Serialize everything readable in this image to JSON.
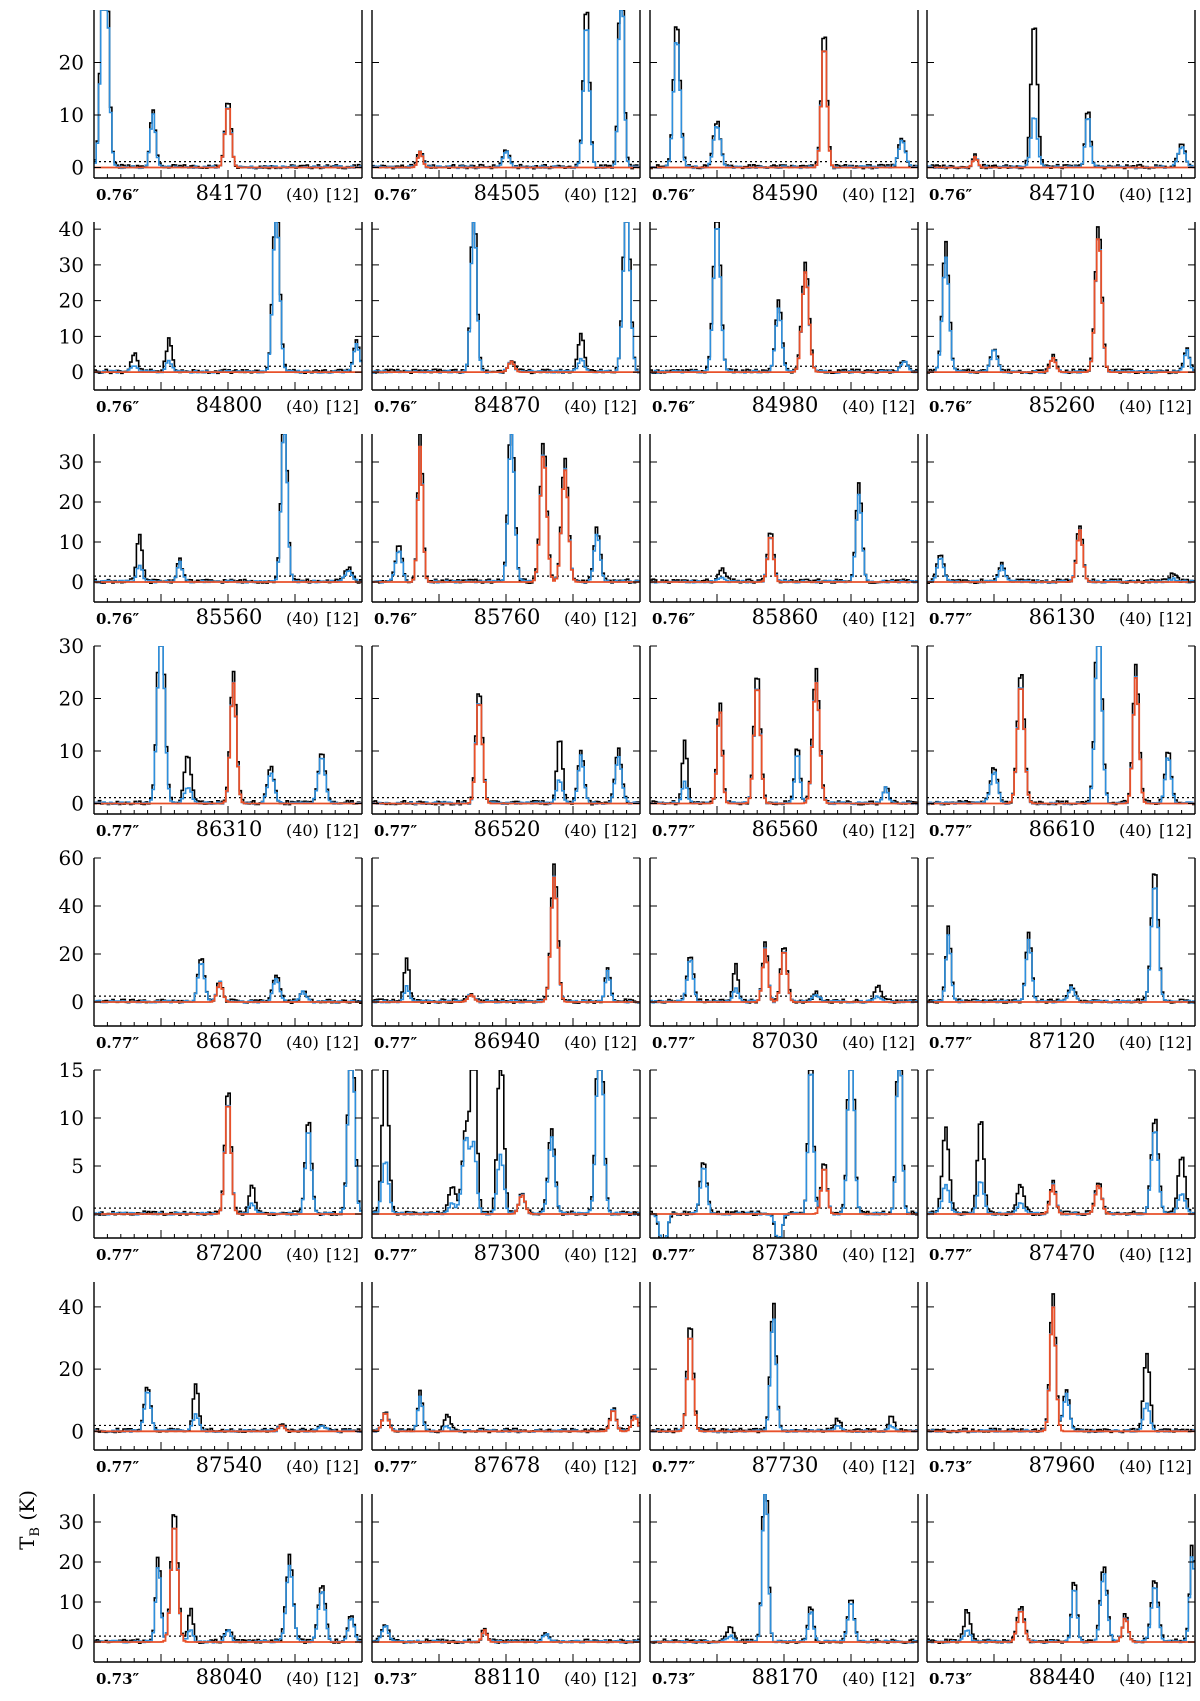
{
  "chart_data": {
    "type": "line",
    "ylabel": "T_B (K)",
    "ylabel_main": "T",
    "ylabel_sub": "B",
    "ylabel_unit": "(K)",
    "colors": {
      "observed": "#000000",
      "model_all": "#2f8fdc",
      "model_species": "#e8512a",
      "threshold": "#000000"
    },
    "rows": [
      {
        "yticks": [
          "0",
          "10",
          "20"
        ],
        "ylim": [
          -2,
          30
        ]
      },
      {
        "yticks": [
          "0",
          "10",
          "20",
          "30",
          "40"
        ],
        "ylim": [
          -5,
          42
        ]
      },
      {
        "yticks": [
          "0",
          "10",
          "20",
          "30"
        ],
        "ylim": [
          -5,
          37
        ]
      },
      {
        "yticks": [
          "0",
          "10",
          "20",
          "30"
        ],
        "ylim": [
          -2,
          30
        ]
      },
      {
        "yticks": [
          "0",
          "20",
          "40",
          "60"
        ],
        "ylim": [
          -10,
          60
        ]
      },
      {
        "yticks": [
          "0",
          "5",
          "10",
          "15"
        ],
        "ylim": [
          -2.5,
          15
        ]
      },
      {
        "yticks": [
          "0",
          "20",
          "40"
        ],
        "ylim": [
          -6,
          48
        ]
      },
      {
        "yticks": [
          "0",
          "10",
          "20",
          "30"
        ],
        "ylim": [
          -5,
          37
        ]
      }
    ],
    "panels": [
      {
        "beam": "0.76″",
        "freq": "84170",
        "note1": "(40)",
        "note2": "[12]",
        "peaks": [
          [
            0.04,
            50,
            1
          ],
          [
            0.22,
            10,
            1
          ],
          [
            0.5,
            12,
            0
          ]
        ]
      },
      {
        "beam": "0.76″",
        "freq": "84505",
        "note1": "(40)",
        "note2": "[12]",
        "peaks": [
          [
            0.18,
            3,
            0
          ],
          [
            0.5,
            3,
            1
          ],
          [
            0.8,
            28,
            1
          ],
          [
            0.93,
            40,
            1
          ]
        ]
      },
      {
        "beam": "0.76″",
        "freq": "84590",
        "note1": "(40)",
        "note2": "[12]",
        "peaks": [
          [
            0.1,
            25,
            1
          ],
          [
            0.25,
            8,
            1
          ],
          [
            0.65,
            24,
            0
          ],
          [
            0.94,
            5,
            1
          ]
        ]
      },
      {
        "beam": "0.76″",
        "freq": "84710",
        "note1": "(40)",
        "note2": "[12]",
        "peaks": [
          [
            0.18,
            2,
            0
          ],
          [
            0.4,
            28,
            2
          ],
          [
            0.6,
            10,
            1
          ],
          [
            0.95,
            4,
            1
          ]
        ]
      },
      {
        "beam": "0.76″",
        "freq": "84800",
        "note1": "(40)",
        "note2": "[12]",
        "peaks": [
          [
            0.15,
            5,
            2
          ],
          [
            0.28,
            9,
            2
          ],
          [
            0.68,
            45,
            1
          ],
          [
            0.98,
            8,
            1
          ]
        ]
      },
      {
        "beam": "0.76″",
        "freq": "84870",
        "note1": "(40)",
        "note2": "[12]",
        "peaks": [
          [
            0.38,
            45,
            1
          ],
          [
            0.52,
            3,
            0
          ],
          [
            0.78,
            11,
            2
          ],
          [
            0.95,
            45,
            1
          ]
        ]
      },
      {
        "beam": "0.76″",
        "freq": "84980",
        "note1": "(40)",
        "note2": "[12]",
        "peaks": [
          [
            0.25,
            42,
            1
          ],
          [
            0.48,
            18,
            1
          ],
          [
            0.58,
            28,
            0
          ],
          [
            0.95,
            3,
            1
          ]
        ]
      },
      {
        "beam": "0.76″",
        "freq": "85260",
        "note1": "(40)",
        "note2": "[12]",
        "peaks": [
          [
            0.07,
            32,
            1
          ],
          [
            0.25,
            6,
            1
          ],
          [
            0.47,
            4,
            0
          ],
          [
            0.64,
            38,
            0
          ],
          [
            0.97,
            6,
            1
          ]
        ]
      },
      {
        "beam": "0.76″",
        "freq": "85560",
        "note1": "(40)",
        "note2": "[12]",
        "peaks": [
          [
            0.17,
            12,
            2
          ],
          [
            0.32,
            5,
            1
          ],
          [
            0.71,
            40,
            1
          ],
          [
            0.95,
            3,
            1
          ]
        ]
      },
      {
        "beam": "0.76″",
        "freq": "85760",
        "note1": "(40)",
        "note2": "[12]",
        "peaks": [
          [
            0.1,
            8,
            1
          ],
          [
            0.18,
            34,
            0
          ],
          [
            0.52,
            38,
            1
          ],
          [
            0.64,
            32,
            0
          ],
          [
            0.72,
            28,
            0
          ],
          [
            0.84,
            12,
            1
          ]
        ]
      },
      {
        "beam": "0.76″",
        "freq": "85860",
        "note1": "(40)",
        "note2": "[12]",
        "peaks": [
          [
            0.27,
            3,
            2
          ],
          [
            0.45,
            12,
            0
          ],
          [
            0.78,
            22,
            1
          ]
        ]
      },
      {
        "beam": "0.77″",
        "freq": "86130",
        "note1": "(40)",
        "note2": "[12]",
        "peaks": [
          [
            0.05,
            6,
            1
          ],
          [
            0.28,
            4,
            1
          ],
          [
            0.57,
            13,
            0
          ],
          [
            0.92,
            2,
            2
          ]
        ]
      },
      {
        "beam": "0.77″",
        "freq": "86310",
        "note1": "(40)",
        "note2": "[12]",
        "peaks": [
          [
            0.25,
            35,
            1
          ],
          [
            0.35,
            9,
            2
          ],
          [
            0.52,
            23,
            0
          ],
          [
            0.66,
            6,
            1
          ],
          [
            0.85,
            9,
            1
          ]
        ]
      },
      {
        "beam": "0.77″",
        "freq": "86520",
        "note1": "(40)",
        "note2": "[12]",
        "peaks": [
          [
            0.4,
            20,
            0
          ],
          [
            0.7,
            13,
            2
          ],
          [
            0.78,
            9,
            1
          ],
          [
            0.92,
            9,
            1
          ]
        ]
      },
      {
        "beam": "0.77″",
        "freq": "86560",
        "note1": "(40)",
        "note2": "[12]",
        "peaks": [
          [
            0.13,
            12,
            2
          ],
          [
            0.26,
            18,
            0
          ],
          [
            0.4,
            23,
            0
          ],
          [
            0.55,
            10,
            1
          ],
          [
            0.62,
            23,
            0
          ],
          [
            0.88,
            3,
            1
          ]
        ]
      },
      {
        "beam": "0.77″",
        "freq": "86610",
        "note1": "(40)",
        "note2": "[12]",
        "peaks": [
          [
            0.25,
            6,
            1
          ],
          [
            0.35,
            23,
            0
          ],
          [
            0.64,
            35,
            1
          ],
          [
            0.78,
            24,
            0
          ],
          [
            0.9,
            9,
            1
          ]
        ]
      },
      {
        "beam": "0.77″",
        "freq": "86870",
        "note1": "(40)",
        "note2": "[12]",
        "peaks": [
          [
            0.4,
            17,
            1
          ],
          [
            0.47,
            8,
            0
          ],
          [
            0.68,
            10,
            1
          ],
          [
            0.78,
            4,
            1
          ]
        ]
      },
      {
        "beam": "0.77″",
        "freq": "86940",
        "note1": "(40)",
        "note2": "[12]",
        "peaks": [
          [
            0.13,
            18,
            2
          ],
          [
            0.37,
            3,
            0
          ],
          [
            0.68,
            52,
            0
          ],
          [
            0.88,
            13,
            1
          ]
        ]
      },
      {
        "beam": "0.77″",
        "freq": "87030",
        "note1": "(40)",
        "note2": "[12]",
        "peaks": [
          [
            0.15,
            18,
            1
          ],
          [
            0.32,
            15,
            2
          ],
          [
            0.43,
            22,
            0
          ],
          [
            0.5,
            22,
            0
          ],
          [
            0.62,
            3,
            1
          ],
          [
            0.85,
            6,
            2
          ]
        ]
      },
      {
        "beam": "0.77″",
        "freq": "87120",
        "note1": "(40)",
        "note2": "[12]",
        "peaks": [
          [
            0.08,
            28,
            1
          ],
          [
            0.38,
            26,
            1
          ],
          [
            0.54,
            6,
            1
          ],
          [
            0.85,
            50,
            1
          ]
        ]
      },
      {
        "beam": "0.77″",
        "freq": "87200",
        "note1": "(40)",
        "note2": "[12]",
        "peaks": [
          [
            0.5,
            12,
            0
          ],
          [
            0.59,
            3,
            2
          ],
          [
            0.8,
            9,
            1
          ],
          [
            0.96,
            20,
            1
          ]
        ]
      },
      {
        "beam": "0.77″",
        "freq": "87300",
        "note1": "(40)",
        "note2": "[12]",
        "peaks": [
          [
            0.05,
            16,
            2
          ],
          [
            0.3,
            3,
            2
          ],
          [
            0.35,
            8,
            1
          ],
          [
            0.38,
            20,
            2
          ],
          [
            0.48,
            18,
            2
          ],
          [
            0.56,
            2,
            0
          ],
          [
            0.67,
            8,
            1
          ],
          [
            0.85,
            20,
            1
          ]
        ]
      },
      {
        "beam": "0.77″",
        "freq": "87380",
        "note1": "(40)",
        "note2": "[12]",
        "peaks": [
          [
            0.05,
            -4,
            1
          ],
          [
            0.2,
            5,
            1
          ],
          [
            0.48,
            -3,
            1
          ],
          [
            0.6,
            16,
            1
          ],
          [
            0.65,
            5,
            0
          ],
          [
            0.75,
            20,
            1
          ],
          [
            0.93,
            20,
            1
          ]
        ]
      },
      {
        "beam": "0.77″",
        "freq": "87470",
        "note1": "(40)",
        "note2": "[12]",
        "peaks": [
          [
            0.07,
            9,
            2
          ],
          [
            0.2,
            10,
            2
          ],
          [
            0.35,
            3,
            2
          ],
          [
            0.47,
            3,
            0
          ],
          [
            0.64,
            3,
            0
          ],
          [
            0.85,
            9,
            1
          ],
          [
            0.95,
            6,
            2
          ]
        ]
      },
      {
        "beam": "0.77″",
        "freq": "87540",
        "note1": "(40)",
        "note2": "[12]",
        "peaks": [
          [
            0.2,
            13,
            1
          ],
          [
            0.38,
            15,
            2
          ],
          [
            0.7,
            2,
            0
          ],
          [
            0.85,
            2,
            1
          ]
        ]
      },
      {
        "beam": "0.77″",
        "freq": "87678",
        "note1": "(40)",
        "note2": "[12]",
        "peaks": [
          [
            0.05,
            6,
            0
          ],
          [
            0.18,
            11,
            1
          ],
          [
            0.28,
            5,
            2
          ],
          [
            0.9,
            7,
            0
          ],
          [
            0.98,
            5,
            0
          ]
        ]
      },
      {
        "beam": "0.77″",
        "freq": "87730",
        "note1": "(40)",
        "note2": "[12]",
        "peaks": [
          [
            0.15,
            32,
            0
          ],
          [
            0.46,
            37,
            1
          ],
          [
            0.7,
            4,
            2
          ],
          [
            0.9,
            5,
            2
          ]
        ]
      },
      {
        "beam": "0.73″",
        "freq": "87960",
        "note1": "(40)",
        "note2": "[12]",
        "peaks": [
          [
            0.47,
            40,
            0
          ],
          [
            0.52,
            12,
            1
          ],
          [
            0.82,
            25,
            2
          ]
        ]
      },
      {
        "beam": "0.73″",
        "freq": "88040",
        "note1": "(40)",
        "note2": "[12]",
        "peaks": [
          [
            0.24,
            19,
            1
          ],
          [
            0.3,
            30,
            0
          ],
          [
            0.36,
            8,
            2
          ],
          [
            0.5,
            3,
            1
          ],
          [
            0.73,
            19,
            1
          ],
          [
            0.85,
            13,
            1
          ],
          [
            0.96,
            6,
            1
          ]
        ]
      },
      {
        "beam": "0.73″",
        "freq": "88110",
        "note1": "(40)",
        "note2": "[12]",
        "peaks": [
          [
            0.05,
            4,
            1
          ],
          [
            0.42,
            3,
            0
          ],
          [
            0.65,
            2,
            1
          ]
        ]
      },
      {
        "beam": "0.73″",
        "freq": "88170",
        "note1": "(40)",
        "note2": "[12]",
        "peaks": [
          [
            0.3,
            4,
            2
          ],
          [
            0.43,
            42,
            1
          ],
          [
            0.6,
            8,
            1
          ],
          [
            0.75,
            10,
            1
          ]
        ]
      },
      {
        "beam": "0.73″",
        "freq": "88440",
        "note1": "(40)",
        "note2": "[12]",
        "peaks": [
          [
            0.15,
            8,
            2
          ],
          [
            0.35,
            8,
            0
          ],
          [
            0.55,
            14,
            1
          ],
          [
            0.66,
            17,
            1
          ],
          [
            0.74,
            6,
            0
          ],
          [
            0.85,
            14,
            1
          ],
          [
            0.99,
            22,
            1
          ]
        ]
      }
    ]
  }
}
